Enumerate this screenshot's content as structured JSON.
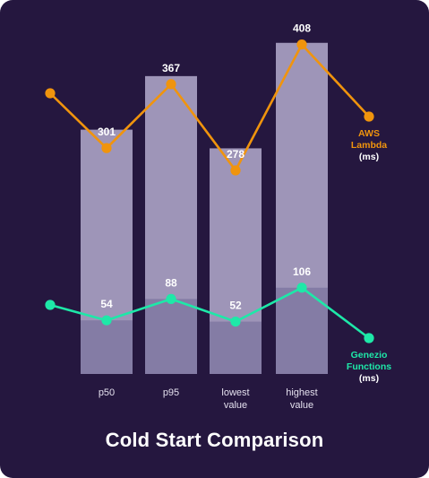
{
  "chart_data": {
    "type": "bar+line",
    "title": "Cold Start Comparison",
    "categories": [
      "p50",
      "p95",
      "lowest value",
      "highest value"
    ],
    "category_lines": [
      [
        "p50"
      ],
      [
        "p95"
      ],
      [
        "lowest",
        "value"
      ],
      [
        "highest",
        "value"
      ]
    ],
    "bar_values": [
      301,
      367,
      278,
      408
    ],
    "series": [
      {
        "name": "AWS Lambda",
        "name_lines": [
          "AWS",
          "Lambda"
        ],
        "unit": "(ms)",
        "values": [
          301,
          367,
          278,
          408
        ],
        "color": "#f0940d"
      },
      {
        "name": "Genezio Functions",
        "name_lines": [
          "Genezio",
          "Functions"
        ],
        "unit": "(ms)",
        "values": [
          54,
          88,
          52,
          106
        ],
        "color": "#1ee8a8"
      }
    ],
    "grid": false
  },
  "colors": {
    "background": "#25173f",
    "bar": "#9e95b8",
    "bar_inner": "#6f6896",
    "label": "#ffffff",
    "axis_text": "#e4e0ee"
  }
}
